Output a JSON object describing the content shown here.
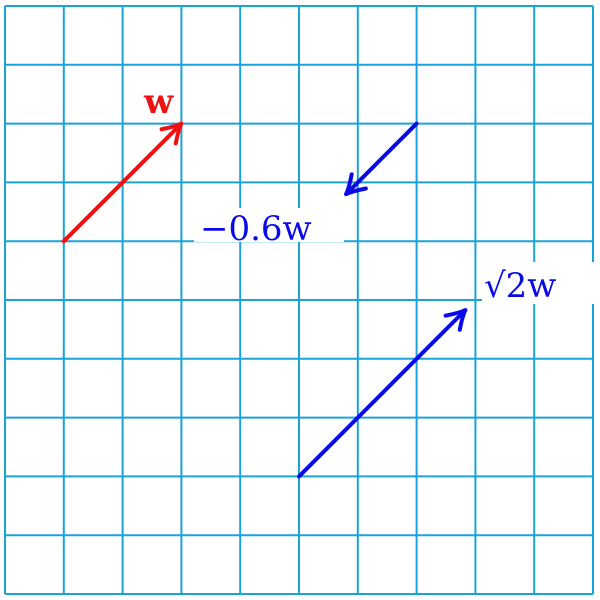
{
  "colors": {
    "grid": "#1aa3d9",
    "w": "#ee1111",
    "scaled": "#0a0ae6",
    "background": "#ffffff"
  },
  "grid": {
    "columns": 10,
    "rows": 10
  },
  "vectors": [
    {
      "id": "w",
      "label": "w",
      "from": [
        1,
        6
      ],
      "to": [
        3,
        8
      ],
      "color_key": "w"
    },
    {
      "id": "neg06w",
      "label": "−0.6w",
      "from": [
        7,
        8
      ],
      "to": [
        5.8,
        6.8
      ],
      "color_key": "scaled"
    },
    {
      "id": "sqrt2w",
      "label": "√2w",
      "from": [
        5,
        2
      ],
      "to": [
        7.83,
        4.83
      ],
      "color_key": "scaled"
    }
  ]
}
